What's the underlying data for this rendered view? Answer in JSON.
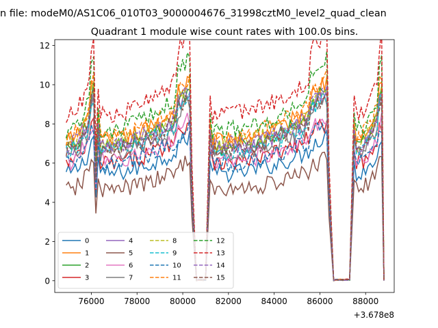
{
  "chart_data": {
    "type": "line",
    "suptitle": "n file: modeM0/AS1C06_010T03_9000004676_31998cztM0_level2_quad_clean",
    "title": "Quadrant 1 module wise count rates with 100.0s bins.",
    "xlabel": "",
    "ylabel": "",
    "offset_text": "+3.678e8",
    "xlim": [
      74400,
      89250
    ],
    "ylim": [
      -0.6,
      12.3
    ],
    "x_ticks": [
      76000,
      78000,
      80000,
      82000,
      84000,
      86000,
      88000
    ],
    "x_tick_labels": [
      "76000",
      "78000",
      "80000",
      "82000",
      "84000",
      "86000",
      "88000"
    ],
    "y_ticks": [
      0,
      2,
      4,
      6,
      8,
      10,
      12
    ],
    "y_tick_labels": [
      "0",
      "2",
      "4",
      "6",
      "8",
      "10",
      "12"
    ],
    "legend_position": "lower-left",
    "x_range": [
      74900,
      88800
    ],
    "x_step": 100,
    "profile_segments": [
      {
        "start": 74900,
        "end": 76100,
        "shape": "on"
      },
      {
        "start": 76100,
        "end": 76300,
        "shape": "dip"
      },
      {
        "start": 76300,
        "end": 80300,
        "shape": "on"
      },
      {
        "start": 80300,
        "end": 80600,
        "shape": "falling"
      },
      {
        "start": 80600,
        "end": 81000,
        "shape": "off"
      },
      {
        "start": 81000,
        "end": 81200,
        "shape": "rising"
      },
      {
        "start": 81200,
        "end": 86300,
        "shape": "on"
      },
      {
        "start": 86300,
        "end": 86600,
        "shape": "falling"
      },
      {
        "start": 86600,
        "end": 87300,
        "shape": "off"
      },
      {
        "start": 87300,
        "end": 87500,
        "shape": "rising"
      },
      {
        "start": 87500,
        "end": 88700,
        "shape": "on"
      },
      {
        "start": 88700,
        "end": 88800,
        "shape": "falling"
      }
    ],
    "series": [
      {
        "name": "0",
        "color": "#1f77b4",
        "dash": "solid",
        "level": 6.4,
        "peak_gain": 1.05,
        "offgap": 0.02
      },
      {
        "name": "1",
        "color": "#ff7f0e",
        "dash": "solid",
        "level": 8.4,
        "peak_gain": 1.1,
        "offgap": 0.03
      },
      {
        "name": "2",
        "color": "#2ca02c",
        "dash": "solid",
        "level": 8.0,
        "peak_gain": 1.1,
        "offgap": 0.02
      },
      {
        "name": "3",
        "color": "#d62728",
        "dash": "solid",
        "level": 7.0,
        "peak_gain": 1.05,
        "offgap": 0.02
      },
      {
        "name": "4",
        "color": "#9467bd",
        "dash": "solid",
        "level": 7.9,
        "peak_gain": 1.1,
        "offgap": 0.03
      },
      {
        "name": "5",
        "color": "#8c564b",
        "dash": "solid",
        "level": 5.4,
        "peak_gain": 1.05,
        "offgap": 0.0
      },
      {
        "name": "6",
        "color": "#e377c2",
        "dash": "solid",
        "level": 7.1,
        "peak_gain": 1.05,
        "offgap": 0.02
      },
      {
        "name": "7",
        "color": "#7f7f7f",
        "dash": "solid",
        "level": 7.6,
        "peak_gain": 1.1,
        "offgap": 0.03
      },
      {
        "name": "8",
        "color": "#bcbd22",
        "dash": "dashed",
        "level": 8.2,
        "peak_gain": 1.1,
        "offgap": 0.03
      },
      {
        "name": "9",
        "color": "#17becf",
        "dash": "dashed",
        "level": 7.7,
        "peak_gain": 1.1,
        "offgap": 0.03
      },
      {
        "name": "10",
        "color": "#1f77b4",
        "dash": "dashed",
        "level": 6.9,
        "peak_gain": 1.05,
        "offgap": 0.02
      },
      {
        "name": "11",
        "color": "#ff7f0e",
        "dash": "dashed",
        "level": 8.6,
        "peak_gain": 1.1,
        "offgap": 0.03
      },
      {
        "name": "12",
        "color": "#2ca02c",
        "dash": "dashed",
        "level": 9.0,
        "peak_gain": 1.15,
        "offgap": 0.03
      },
      {
        "name": "13",
        "color": "#d62728",
        "dash": "dashed",
        "level": 9.9,
        "peak_gain": 1.15,
        "offgap": 0.04
      },
      {
        "name": "14",
        "color": "#9467bd",
        "dash": "dashed",
        "level": 8.1,
        "peak_gain": 1.1,
        "offgap": 0.03
      },
      {
        "name": "15",
        "color": "#8c564b",
        "dash": "dashed",
        "level": 7.8,
        "peak_gain": 1.1,
        "offgap": 0.03
      }
    ]
  }
}
